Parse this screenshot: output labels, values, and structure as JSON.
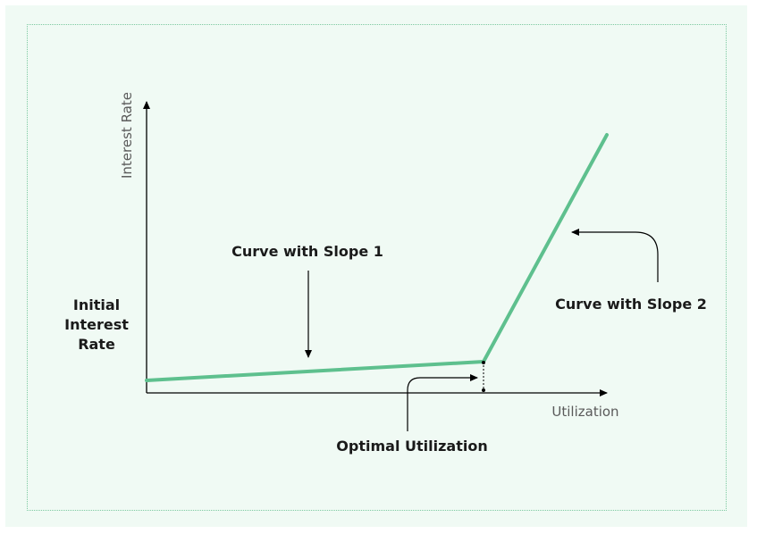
{
  "diagram": {
    "accent_color": "#5ec08e",
    "axis_color": "#000000",
    "background_color": "#f0faf4",
    "x_axis_title": "Utilization",
    "y_axis_title": "Interest Rate",
    "label_slope1": "Curve with Slope 1",
    "label_slope2": "Curve with Slope 2",
    "label_initial_rate_lines": [
      "Initial",
      "Interest",
      "Rate"
    ],
    "label_optimal": "Optimal Utilization"
  }
}
